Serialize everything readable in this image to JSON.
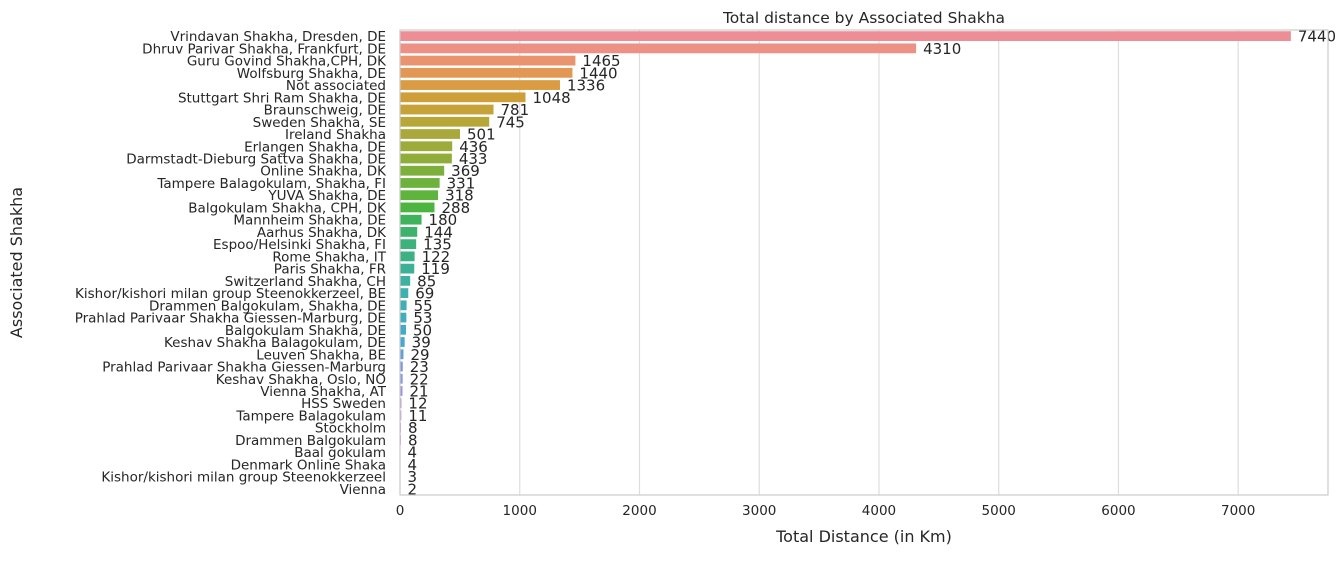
{
  "chart_data": {
    "type": "bar",
    "orientation": "horizontal",
    "title": "Total distance by Associated Shakha",
    "xlabel": "Total Distance (in Km)",
    "ylabel": "Associated Shakha",
    "xlim": [
      0,
      7750
    ],
    "xticks": [
      0,
      1000,
      2000,
      3000,
      4000,
      5000,
      6000,
      7000
    ],
    "grid": "vertical",
    "legend": "none",
    "categories": [
      "Vrindavan Shakha, Dresden, DE",
      "Dhruv Parivar Shakha, Frankfurt, DE",
      "Guru Govind Shakha,CPH, DK",
      "Wolfsburg Shakha, DE",
      "Not associated",
      "Stuttgart Shri Ram Shakha, DE",
      "Braunschweig, DE",
      "Sweden Shakha, SE",
      "Ireland Shakha",
      "Erlangen Shakha, DE",
      "Darmstadt-Dieburg Sattva Shakha, DE",
      "Online Shakha, DK",
      "Tampere Balagokulam, Shakha, FI",
      "YUVA Shakha, DE",
      "Balgokulam Shakha, CPH, DK",
      "Mannheim Shakha, DE",
      "Aarhus Shakha, DK",
      "Espoo/Helsinki Shakha, FI",
      "Rome Shakha, IT",
      "Paris Shakha, FR",
      "Switzerland Shakha, CH",
      "Kishor/kishori milan group Steenokkerzeel, BE",
      "Drammen Balgokulam, Shakha, DE",
      "Prahlad Parivaar Shakha Giessen-Marburg, DE",
      "Balgokulam Shakha, DE",
      "Keshav Shakha Balagokulam, DE",
      "Leuven Shakha, BE",
      "Prahlad Parivaar Shakha Giessen-Marburg",
      "Keshav Shakha, Oslo, NO",
      "Vienna Shakha, AT",
      "HSS Sweden",
      "Tampere Balagokulam",
      "Stockholm",
      "Drammen Balgokulam",
      "Baal gokulam",
      "Denmark Online Shaka",
      "Kishor/kishori milan group Steenokkerzeel",
      "Vienna"
    ],
    "values": [
      7440,
      4310,
      1465,
      1440,
      1336,
      1048,
      781,
      745,
      501,
      436,
      433,
      369,
      331,
      318,
      288,
      180,
      144,
      135,
      122,
      119,
      85,
      69,
      55,
      53,
      50,
      39,
      29,
      23,
      22,
      21,
      12,
      11,
      8,
      8,
      4,
      4,
      3,
      2
    ],
    "colors": [
      "#ed8e97",
      "#ed9186",
      "#e9946f",
      "#e29755",
      "#da9c42",
      "#ce9f39",
      "#c5a339",
      "#b7a739",
      "#aaa83a",
      "#9dab3a",
      "#90ad3a",
      "#7db03b",
      "#6db23c",
      "#5eb43d",
      "#4bb53f",
      "#3fb35b",
      "#3db26c",
      "#3db27a",
      "#3cb186",
      "#3db195",
      "#3eb1a2",
      "#3fb0ad",
      "#41aeb5",
      "#42adbd",
      "#45aac7",
      "#4ba6d0",
      "#62a0d8",
      "#7c9ada",
      "#8e97dc",
      "#9f93de",
      "#ae8fdf",
      "#bd8be0",
      "#cb86df",
      "#d982de",
      "#e37fd6",
      "#e681c6",
      "#eb84b6",
      "#ec88a7"
    ]
  }
}
